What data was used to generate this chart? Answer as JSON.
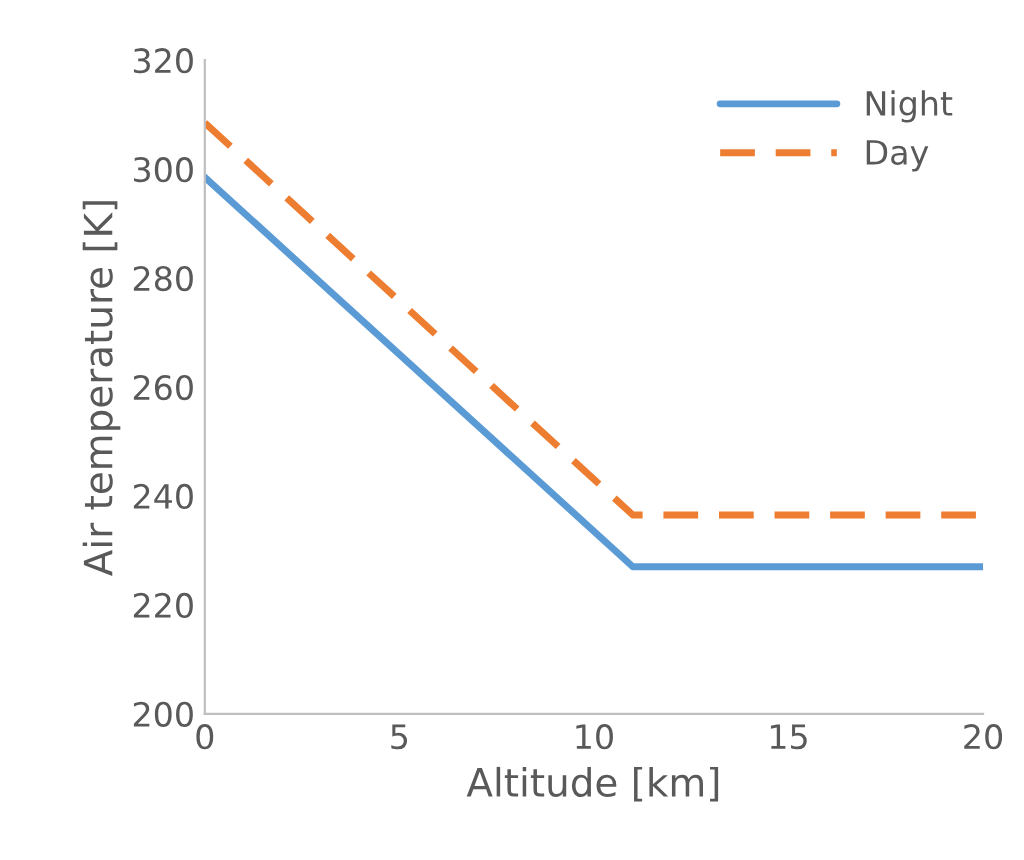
{
  "chart_data": {
    "type": "line",
    "xlabel": "Altitude [km]",
    "ylabel": "Air temperature [K]",
    "x": [
      0,
      11,
      20
    ],
    "series": [
      {
        "name": "Night",
        "color": "#5b9bd5",
        "values": [
          298.5,
          227,
          227
        ],
        "line_style": "solid"
      },
      {
        "name": "Day",
        "color": "#ed7d31",
        "values": [
          308.5,
          236.5,
          236.5
        ],
        "line_style": "dashed"
      }
    ],
    "xlim": [
      0,
      20
    ],
    "xticks": [
      0,
      5,
      10,
      15,
      20
    ],
    "ylim": [
      200,
      320
    ],
    "yticks": [
      200,
      220,
      240,
      260,
      280,
      300,
      320
    ],
    "grid": false,
    "legend": "top right",
    "marker": "none"
  }
}
